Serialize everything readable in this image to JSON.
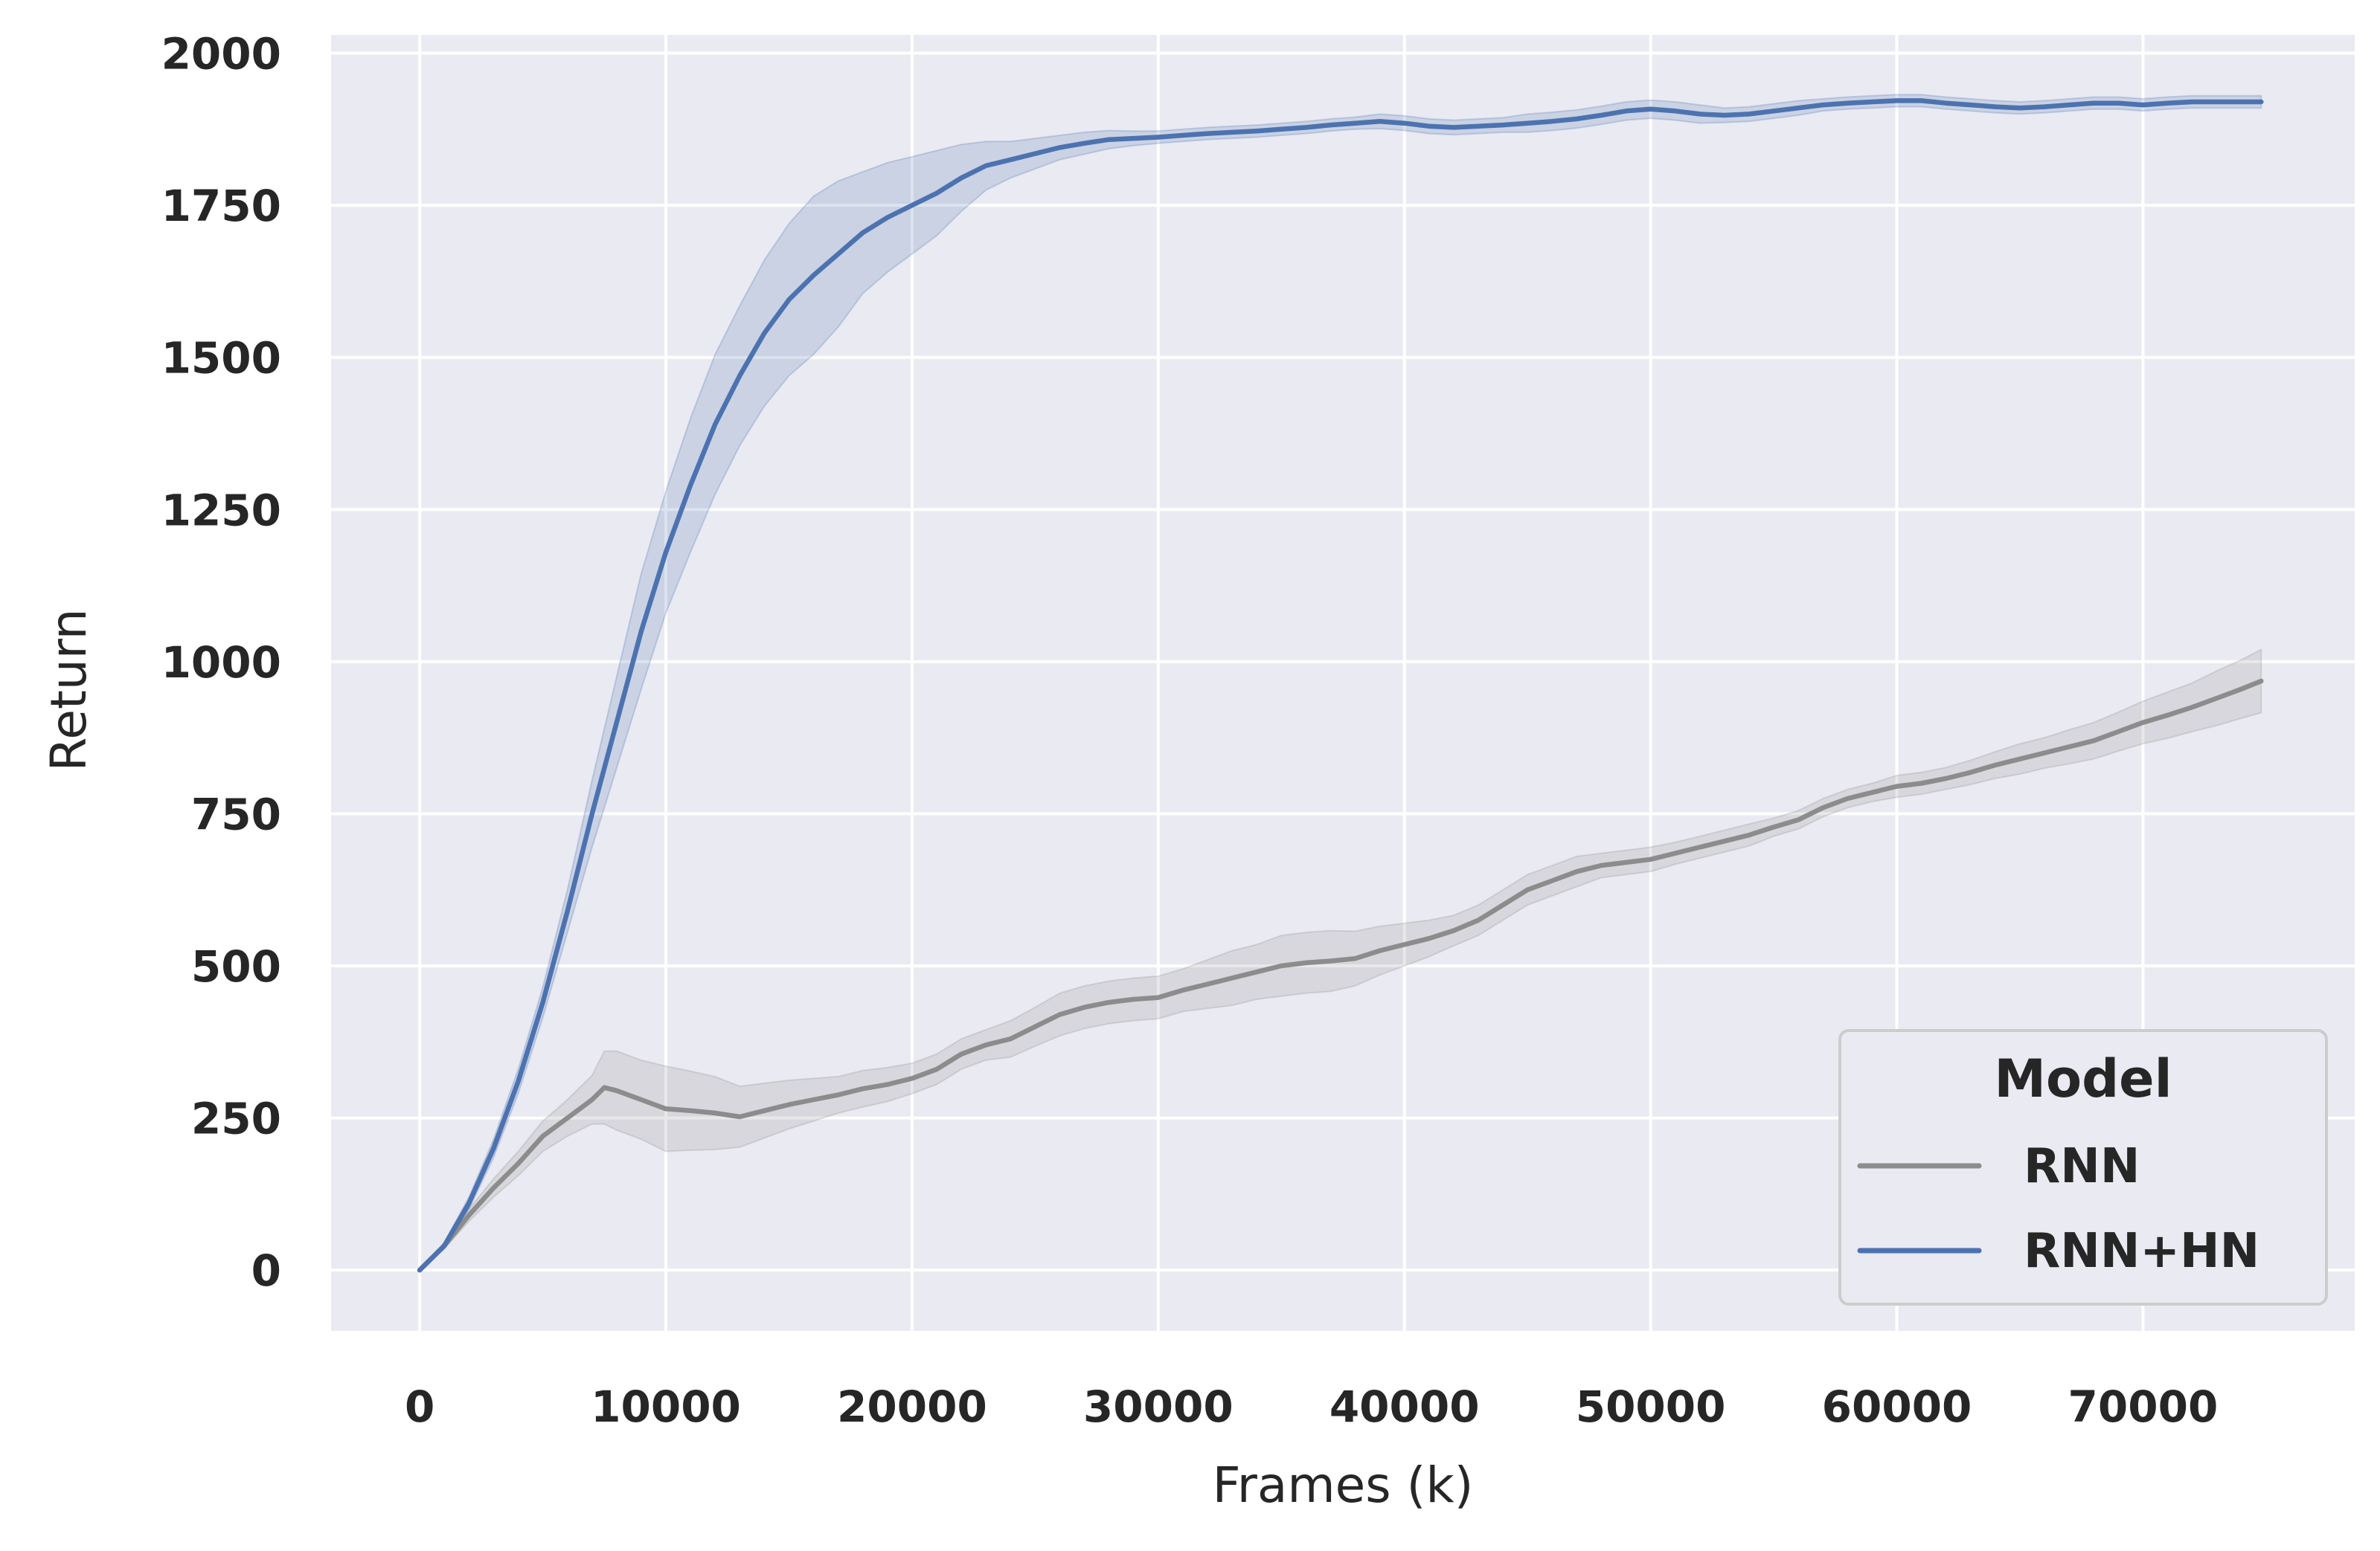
{
  "chart_data": {
    "type": "line",
    "xlabel": "Frames (k)",
    "ylabel": "Return",
    "xlim": [
      -3600,
      78600
    ],
    "ylim": [
      -100,
      2030
    ],
    "xticks": [
      0,
      10000,
      20000,
      30000,
      40000,
      50000,
      60000,
      70000
    ],
    "yticks": [
      0,
      250,
      500,
      750,
      1000,
      1250,
      1500,
      1750,
      2000
    ],
    "grid": true,
    "legend": {
      "title": "Model",
      "placement": "lower-right"
    },
    "colors": {
      "background": "#eaeaf2",
      "grid": "#ffffff",
      "RNN": "#8c8c8c",
      "RNN+HN": "#4c72b0"
    },
    "series": [
      {
        "name": "RNN",
        "x": [
          0,
          1000,
          2000,
          3000,
          4000,
          5000,
          6000,
          7000,
          7500,
          8000,
          9000,
          10000,
          11000,
          12000,
          13000,
          14000,
          15000,
          16000,
          17000,
          18000,
          19000,
          20000,
          21000,
          22000,
          23000,
          24000,
          25000,
          26000,
          27000,
          28000,
          29000,
          30000,
          31000,
          32000,
          33000,
          34000,
          35000,
          36000,
          37000,
          38000,
          39000,
          40000,
          41000,
          42000,
          43000,
          44000,
          45000,
          46000,
          47000,
          48000,
          49000,
          50000,
          51000,
          52000,
          53000,
          54000,
          55000,
          56000,
          57000,
          58000,
          59000,
          60000,
          61000,
          62000,
          63000,
          64000,
          65000,
          66000,
          67000,
          68000,
          69000,
          70000,
          71000,
          72000,
          73000,
          74000,
          74800
        ],
        "y": [
          0,
          40,
          90,
          135,
          175,
          220,
          250,
          280,
          300,
          295,
          280,
          265,
          262,
          258,
          252,
          262,
          272,
          280,
          288,
          298,
          305,
          315,
          330,
          355,
          370,
          380,
          400,
          420,
          432,
          440,
          445,
          448,
          460,
          470,
          480,
          490,
          500,
          505,
          508,
          512,
          525,
          535,
          545,
          558,
          575,
          600,
          625,
          640,
          655,
          665,
          670,
          675,
          685,
          695,
          705,
          715,
          728,
          740,
          760,
          775,
          785,
          795,
          800,
          808,
          818,
          830,
          840,
          850,
          860,
          870,
          885,
          900,
          912,
          925,
          940,
          955,
          968
        ],
        "ci_half": [
          0,
          5,
          10,
          15,
          20,
          25,
          30,
          40,
          60,
          65,
          65,
          70,
          65,
          60,
          50,
          45,
          40,
          35,
          30,
          30,
          28,
          25,
          25,
          25,
          25,
          30,
          32,
          35,
          35,
          35,
          35,
          35,
          35,
          40,
          45,
          45,
          50,
          50,
          50,
          45,
          40,
          35,
          30,
          25,
          25,
          25,
          25,
          25,
          25,
          20,
          20,
          20,
          18,
          18,
          18,
          18,
          15,
          15,
          15,
          15,
          15,
          18,
          18,
          18,
          20,
          22,
          25,
          25,
          28,
          30,
          32,
          35,
          38,
          40,
          45,
          48,
          52
        ]
      },
      {
        "name": "RNN+HN",
        "x": [
          0,
          1000,
          2000,
          3000,
          4000,
          5000,
          6000,
          7000,
          8000,
          9000,
          10000,
          11000,
          12000,
          13000,
          14000,
          15000,
          16000,
          17000,
          18000,
          19000,
          20000,
          21000,
          22000,
          23000,
          24000,
          25000,
          26000,
          27000,
          28000,
          29000,
          30000,
          31000,
          32000,
          33000,
          34000,
          35000,
          36000,
          37000,
          38000,
          39000,
          40000,
          41000,
          42000,
          43000,
          44000,
          45000,
          46000,
          47000,
          48000,
          49000,
          50000,
          51000,
          52000,
          53000,
          54000,
          55000,
          56000,
          57000,
          58000,
          59000,
          60000,
          61000,
          62000,
          63000,
          64000,
          65000,
          66000,
          67000,
          68000,
          69000,
          70000,
          71000,
          72000,
          73000,
          74000,
          74800
        ],
        "y": [
          0,
          40,
          110,
          200,
          310,
          440,
          590,
          750,
          900,
          1050,
          1180,
          1290,
          1390,
          1470,
          1540,
          1595,
          1635,
          1670,
          1705,
          1730,
          1750,
          1770,
          1795,
          1815,
          1825,
          1835,
          1845,
          1852,
          1858,
          1860,
          1862,
          1865,
          1868,
          1870,
          1872,
          1875,
          1878,
          1882,
          1885,
          1888,
          1885,
          1880,
          1878,
          1880,
          1882,
          1885,
          1888,
          1892,
          1898,
          1905,
          1908,
          1905,
          1900,
          1898,
          1900,
          1905,
          1910,
          1915,
          1918,
          1920,
          1922,
          1922,
          1918,
          1915,
          1912,
          1910,
          1912,
          1915,
          1918,
          1918,
          1915,
          1918,
          1920,
          1920,
          1920,
          1920
        ],
        "ci_half": [
          0,
          5,
          10,
          15,
          20,
          25,
          35,
          55,
          75,
          95,
          100,
          110,
          115,
          115,
          120,
          125,
          130,
          120,
          100,
          90,
          80,
          70,
          55,
          40,
          30,
          25,
          20,
          18,
          15,
          12,
          10,
          10,
          10,
          10,
          10,
          10,
          10,
          10,
          10,
          12,
          12,
          12,
          12,
          12,
          12,
          15,
          15,
          15,
          15,
          15,
          15,
          15,
          15,
          12,
          12,
          12,
          12,
          10,
          10,
          10,
          10,
          10,
          10,
          10,
          10,
          10,
          10,
          10,
          10,
          10,
          10,
          10,
          10,
          10,
          10,
          10
        ]
      }
    ]
  }
}
